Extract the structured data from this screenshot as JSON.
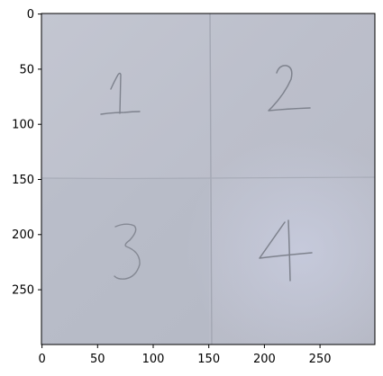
{
  "axes": {
    "x_ticks": [
      "0",
      "50",
      "100",
      "150",
      "200",
      "250"
    ],
    "y_ticks": [
      "0",
      "50",
      "100",
      "150",
      "200",
      "250"
    ]
  },
  "photo": {
    "digits": [
      "1",
      "2",
      "3",
      "4"
    ],
    "paper_color": "#bcc0cd",
    "pencil_color": "#7d818c",
    "guide_line_color": "#a8acb8"
  }
}
